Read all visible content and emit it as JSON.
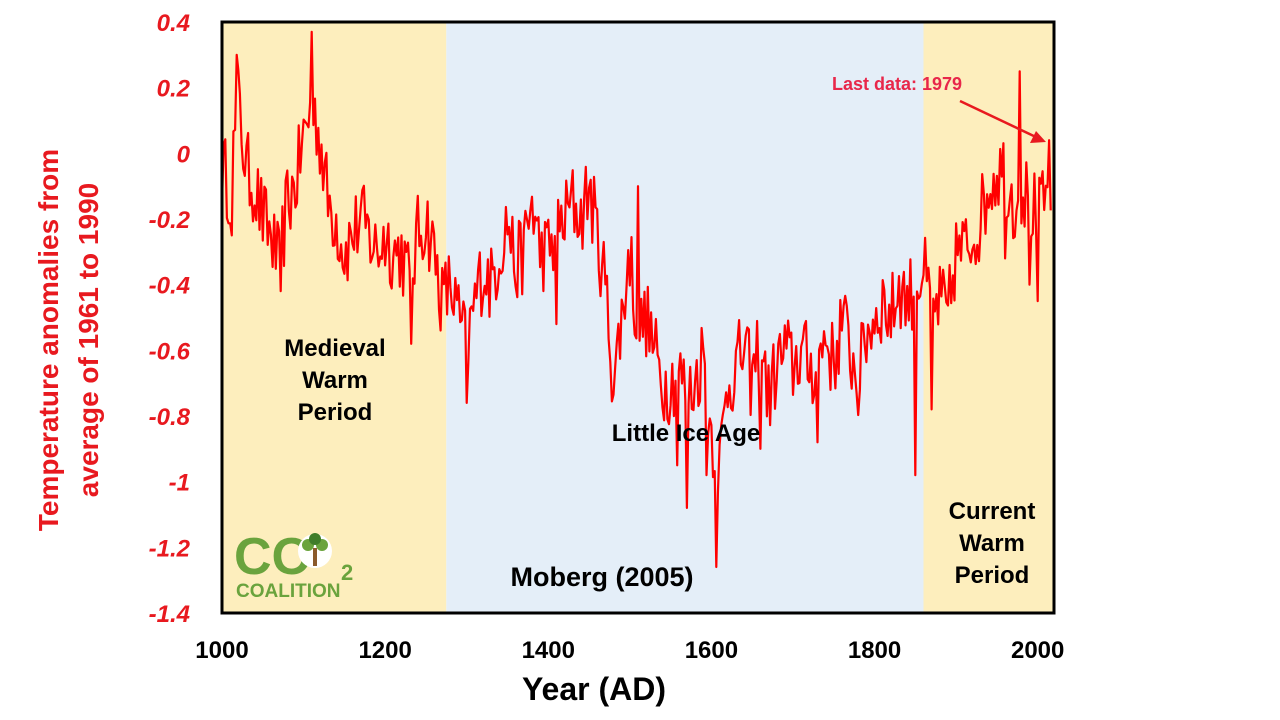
{
  "chart_data": {
    "type": "line",
    "title": "",
    "xlabel": "Year (AD)",
    "ylabel_lines": [
      "Temperature anomalies from",
      "average of 1961 to 1990"
    ],
    "xlim": [
      1000,
      2020
    ],
    "ylim": [
      -1.4,
      0.4
    ],
    "xticks": [
      1000,
      1200,
      1400,
      1600,
      1800,
      2000
    ],
    "yticks": [
      0.4,
      0.2,
      0,
      -0.2,
      -0.4,
      -0.6,
      -0.8,
      -1,
      -1.2,
      -1.4
    ],
    "ytick_labels": [
      "0.4",
      "0.2",
      "0",
      "-0.2",
      "-0.4",
      "-0.6",
      "-0.8",
      "-1",
      "-1.2",
      "-1.4"
    ],
    "grid": false,
    "periods": [
      {
        "name": "Medieval Warm Period",
        "lines": [
          "Medieval",
          "Warm",
          "Period"
        ],
        "start": 1000,
        "end": 1275,
        "color": "#fdeebd"
      },
      {
        "name": "Little Ice Age",
        "lines": [
          "Little Ice Age"
        ],
        "start": 1275,
        "end": 1860,
        "color": "#e4eef8"
      },
      {
        "name": "Current Warm Period",
        "lines": [
          "Current",
          "Warm",
          "Period"
        ],
        "start": 1860,
        "end": 2020,
        "color": "#fdeebd"
      }
    ],
    "source_label": "Moberg (2005)",
    "annotation": {
      "text": "Last data: 1979",
      "x": 1979
    },
    "series": [
      {
        "name": "Moberg (2005) reconstruction",
        "color": "#ff0000",
        "anchors_x": [
          1000,
          1010,
          1020,
          1030,
          1040,
          1050,
          1060,
          1070,
          1080,
          1090,
          1100,
          1110,
          1120,
          1130,
          1140,
          1150,
          1160,
          1170,
          1180,
          1190,
          1200,
          1210,
          1220,
          1230,
          1240,
          1250,
          1260,
          1270,
          1280,
          1290,
          1300,
          1310,
          1320,
          1330,
          1340,
          1350,
          1360,
          1370,
          1380,
          1390,
          1400,
          1410,
          1420,
          1430,
          1440,
          1450,
          1460,
          1470,
          1480,
          1490,
          1500,
          1510,
          1520,
          1530,
          1540,
          1550,
          1560,
          1570,
          1580,
          1590,
          1600,
          1610,
          1620,
          1630,
          1640,
          1650,
          1660,
          1670,
          1680,
          1690,
          1700,
          1710,
          1720,
          1730,
          1740,
          1750,
          1760,
          1770,
          1780,
          1790,
          1800,
          1810,
          1820,
          1830,
          1840,
          1850,
          1860,
          1870,
          1880,
          1890,
          1900,
          1910,
          1920,
          1930,
          1940,
          1950,
          1960,
          1970,
          1980,
          1990,
          2000,
          2010,
          2020
        ],
        "anchors_y": [
          -0.05,
          -0.1,
          0.15,
          -0.05,
          -0.1,
          -0.2,
          -0.25,
          -0.35,
          -0.15,
          -0.1,
          0.05,
          0.15,
          0.05,
          -0.15,
          -0.2,
          -0.3,
          -0.25,
          -0.2,
          -0.25,
          -0.3,
          -0.25,
          -0.3,
          -0.3,
          -0.4,
          -0.25,
          -0.2,
          -0.3,
          -0.45,
          -0.4,
          -0.5,
          -0.6,
          -0.45,
          -0.35,
          -0.4,
          -0.3,
          -0.2,
          -0.35,
          -0.3,
          -0.15,
          -0.3,
          -0.3,
          -0.25,
          -0.2,
          -0.15,
          -0.2,
          -0.1,
          -0.25,
          -0.4,
          -0.7,
          -0.5,
          -0.3,
          -0.55,
          -0.5,
          -0.6,
          -0.7,
          -0.7,
          -0.65,
          -0.75,
          -0.7,
          -0.6,
          -0.85,
          -0.95,
          -0.7,
          -0.65,
          -0.6,
          -0.7,
          -0.55,
          -0.75,
          -0.65,
          -0.6,
          -0.65,
          -0.6,
          -0.65,
          -0.65,
          -0.55,
          -0.65,
          -0.5,
          -0.6,
          -0.7,
          -0.55,
          -0.5,
          -0.45,
          -0.5,
          -0.4,
          -0.45,
          -0.4,
          -0.35,
          -0.5,
          -0.45,
          -0.5,
          -0.3,
          -0.3,
          -0.25,
          -0.2,
          -0.1,
          -0.05,
          -0.05,
          -0.15,
          -0.1,
          -0.15,
          -0.2,
          -0.15,
          -0.05
        ],
        "noise_amplitude": 0.07,
        "spikes": [
          {
            "x": 1013,
            "y": -0.25
          },
          {
            "x": 1018,
            "y": 0.3
          },
          {
            "x": 1072,
            "y": -0.42
          },
          {
            "x": 1110,
            "y": 0.37
          },
          {
            "x": 1232,
            "y": -0.58
          },
          {
            "x": 1300,
            "y": -0.76
          },
          {
            "x": 1410,
            "y": -0.52
          },
          {
            "x": 1510,
            "y": -0.1
          },
          {
            "x": 1558,
            "y": -0.95
          },
          {
            "x": 1570,
            "y": -1.08
          },
          {
            "x": 1595,
            "y": -0.98
          },
          {
            "x": 1607,
            "y": -1.26
          },
          {
            "x": 1660,
            "y": -0.9
          },
          {
            "x": 1730,
            "y": -0.88
          },
          {
            "x": 1850,
            "y": -0.98
          },
          {
            "x": 1870,
            "y": -0.78
          },
          {
            "x": 1960,
            "y": -0.32
          },
          {
            "x": 1978,
            "y": 0.25
          },
          {
            "x": 1990,
            "y": -0.4
          },
          {
            "x": 2000,
            "y": -0.45
          },
          {
            "x": 2015,
            "y": 0.04
          }
        ]
      }
    ]
  },
  "logo": {
    "letters": "CO",
    "subscript": "2",
    "wordmark": "COALITION",
    "colors": {
      "primary": "#6aa33d",
      "dark": "#3f7d2a",
      "tree": "#8b5a2b"
    }
  },
  "colors": {
    "axis_red": "#e8191f",
    "annotation": "#e8274a",
    "arrow": "#e8191f",
    "line": "#ff0000"
  }
}
